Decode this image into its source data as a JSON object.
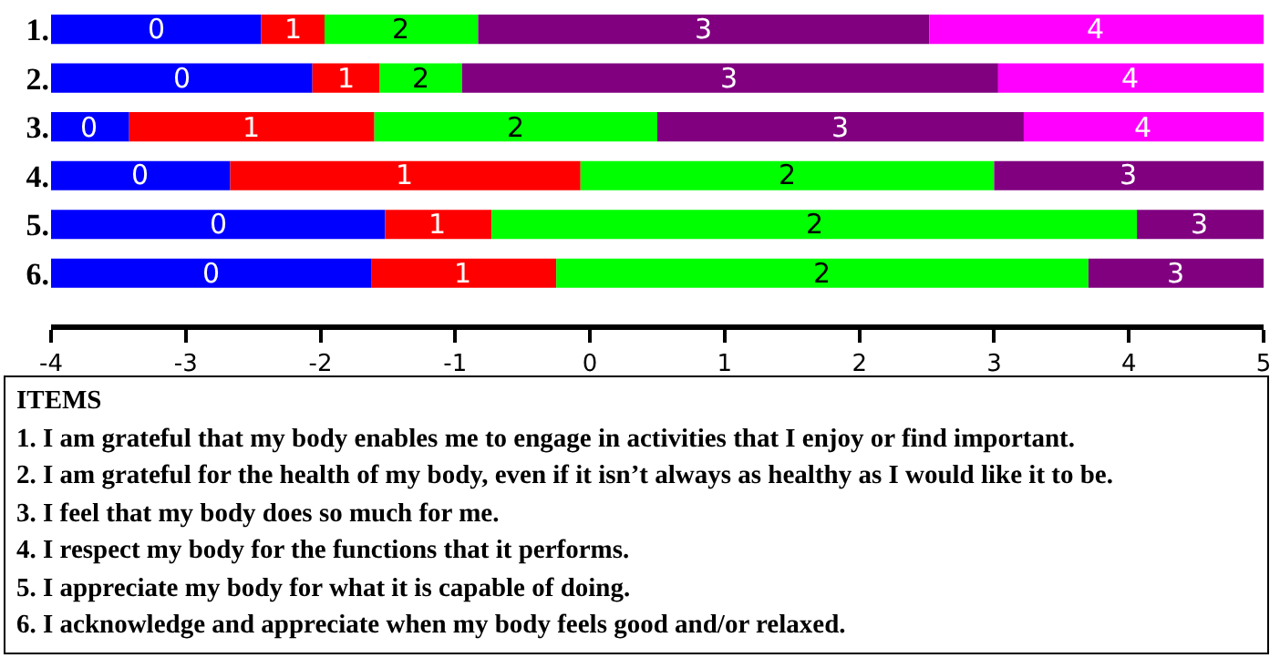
{
  "chart_data": {
    "type": "bar",
    "orientation": "horizontal",
    "legend": false,
    "categories": [
      "1.",
      "2.",
      "3.",
      "4.",
      "5.",
      "6."
    ],
    "series": [
      {
        "name": "0",
        "color": "#0000ff",
        "base": [
          -4,
          -4,
          -4,
          -4,
          -4,
          -4
        ],
        "values": [
          1.56,
          1.94,
          0.58,
          1.33,
          2.48,
          2.38
        ]
      },
      {
        "name": "1",
        "color": "#ff0000",
        "base": [
          -2.44,
          -2.06,
          -3.42,
          -2.67,
          -1.52,
          -1.62
        ],
        "values": [
          0.47,
          0.5,
          1.82,
          2.6,
          0.79,
          1.37
        ]
      },
      {
        "name": "2",
        "color": "#00ff00",
        "base": [
          -1.97,
          -1.56,
          -1.6,
          -0.07,
          -0.73,
          -0.25
        ],
        "values": [
          1.14,
          0.61,
          2.1,
          3.07,
          4.79,
          3.95
        ]
      },
      {
        "name": "3",
        "color": "#800080",
        "base": [
          -0.83,
          -0.95,
          0.5,
          3.0,
          4.06,
          3.7
        ],
        "values": [
          3.35,
          3.98,
          2.72,
          2.0,
          0.94,
          1.3
        ]
      },
      {
        "name": "4",
        "color": "#ff00ff",
        "base": [
          2.52,
          3.03,
          3.22,
          null,
          null,
          null
        ],
        "values": [
          2.48,
          1.97,
          1.78,
          null,
          null,
          null
        ]
      }
    ],
    "xlim": [
      -4,
      5
    ],
    "xticks": [
      -4,
      -3,
      -2,
      -1,
      0,
      1,
      2,
      3,
      4,
      5
    ],
    "annotations": [
      "ITEMS",
      "1.  I am grateful that my body enables me to engage in activities that I enjoy or find important.",
      "2.  I am grateful for the health of my body, even if it isn’t always as healthy as I would like it to be.",
      "3.  I feel that my body does so much for me.",
      "4.  I respect my body for the functions that it performs.",
      "5.  I appreciate my body for what it is capable of doing.",
      "6.  I acknowledge and appreciate when my body feels good and/or relaxed."
    ]
  }
}
